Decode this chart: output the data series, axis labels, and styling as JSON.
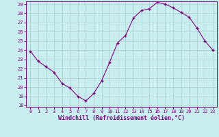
{
  "x": [
    0,
    1,
    2,
    3,
    4,
    5,
    6,
    7,
    8,
    9,
    10,
    11,
    12,
    13,
    14,
    15,
    16,
    17,
    18,
    19,
    20,
    21,
    22,
    23
  ],
  "y": [
    23.9,
    22.8,
    22.2,
    21.6,
    20.4,
    19.9,
    19.0,
    18.5,
    19.3,
    20.7,
    22.7,
    24.8,
    25.6,
    27.5,
    28.3,
    28.5,
    29.2,
    29.0,
    28.6,
    28.1,
    27.6,
    26.4,
    25.0,
    24.0
  ],
  "line_color": "#800080",
  "marker": "+",
  "marker_color": "#800080",
  "bg_color": "#c8eef0",
  "grid_color": "#aacccc",
  "xlabel": "Windchill (Refroidissement éolien,°C)",
  "xlabel_color": "#800080",
  "tick_color": "#800080",
  "spine_color": "#800080",
  "ylim": [
    18,
    29
  ],
  "xlim": [
    -0.5,
    23.5
  ],
  "yticks": [
    18,
    19,
    20,
    21,
    22,
    23,
    24,
    25,
    26,
    27,
    28,
    29
  ],
  "xticks": [
    0,
    1,
    2,
    3,
    4,
    5,
    6,
    7,
    8,
    9,
    10,
    11,
    12,
    13,
    14,
    15,
    16,
    17,
    18,
    19,
    20,
    21,
    22,
    23
  ],
  "tick_fontsize": 5,
  "xlabel_fontsize": 6,
  "marker_size": 3
}
